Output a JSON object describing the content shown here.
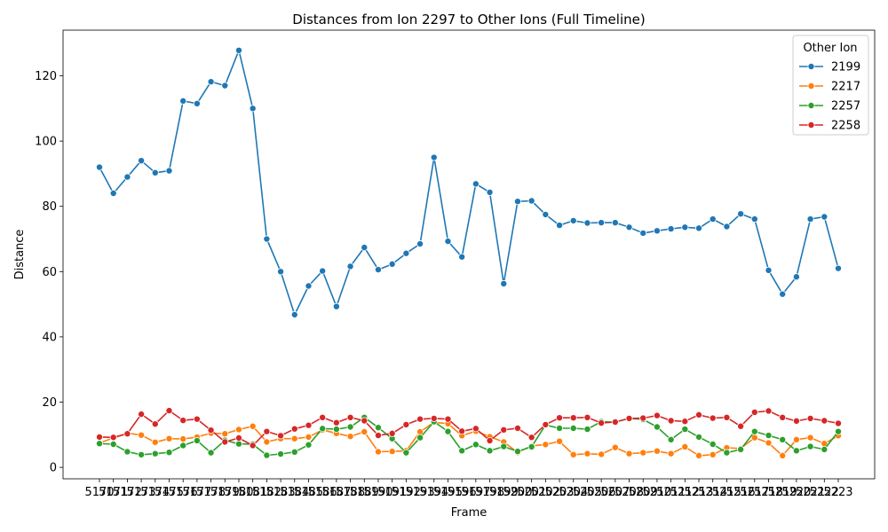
{
  "chart_data": {
    "type": "line",
    "title": "Distances from Ion 2297 to Other Ions (Full Timeline)",
    "xlabel": "Frame",
    "ylabel": "Distance",
    "ylim": [
      -3.5,
      134
    ],
    "y_ticks": [
      0,
      20,
      40,
      60,
      80,
      100,
      120
    ],
    "legend": {
      "title": "Other Ion",
      "placement": "top-right"
    },
    "x": [
      "5170",
      "5171",
      "5172",
      "5173",
      "5174",
      "5175",
      "5176",
      "5177",
      "5178",
      "5179",
      "5180",
      "5181",
      "5182",
      "5183",
      "5184",
      "5185",
      "5186",
      "5187",
      "5188",
      "5189",
      "5190",
      "5191",
      "5192",
      "5193",
      "5194",
      "5195",
      "5196",
      "5197",
      "5198",
      "5199",
      "5200",
      "5201",
      "5202",
      "5203",
      "5204",
      "5205",
      "5206",
      "5207",
      "5208",
      "5209",
      "5210",
      "5211",
      "5212",
      "5213",
      "5214",
      "5215",
      "5216",
      "5217",
      "5218",
      "5219",
      "5220",
      "5221",
      "5222",
      "5223"
    ],
    "series": [
      {
        "name": "2199",
        "color": "#1f77b4",
        "values": [
          92,
          84,
          89,
          94,
          90.3,
          90.9,
          112.3,
          111.5,
          118.2,
          117,
          127.8,
          110,
          70,
          60,
          46.8,
          55.6,
          60.2,
          49.3,
          61.6,
          67.4,
          60.6,
          62.3,
          65.6,
          68.5,
          95,
          69.3,
          64.5,
          86.9,
          84.3,
          56.3,
          81.5,
          81.7,
          77.5,
          74.2,
          75.6,
          74.9,
          75,
          75,
          73.6,
          71.8,
          72.5,
          73.1,
          73.6,
          73.3,
          76.1,
          73.8,
          77.7,
          76.1,
          60.4,
          53.1,
          58.4,
          76.1,
          76.8,
          61
        ]
      },
      {
        "name": "2217",
        "color": "#ff7f0e",
        "values": [
          7.5,
          9,
          10.5,
          9.9,
          7.7,
          8.8,
          8.7,
          9.3,
          10.5,
          10.3,
          11.6,
          12.6,
          7.8,
          8.8,
          8.8,
          9.3,
          11.5,
          10.4,
          9.5,
          10.9,
          4.8,
          4.9,
          5.1,
          10.9,
          13.8,
          13.4,
          9.7,
          11.1,
          9.4,
          7.8,
          4.6,
          6.6,
          7,
          8,
          3.9,
          4.2,
          4,
          6.1,
          4.2,
          4.5,
          5,
          4.2,
          6.3,
          3.6,
          3.9,
          6,
          5.8,
          9.1,
          7.5,
          3.6,
          8.5,
          9.1,
          7.3,
          9.7
        ]
      },
      {
        "name": "2257",
        "color": "#2ca02c",
        "values": [
          7.3,
          7.1,
          4.8,
          3.9,
          4.2,
          4.6,
          6.7,
          8.2,
          4.5,
          8.3,
          7.2,
          7.1,
          3.7,
          4.1,
          4.7,
          6.9,
          11.9,
          11.7,
          12.4,
          15.3,
          12.2,
          8.8,
          4.5,
          9.1,
          14,
          11,
          5.1,
          7,
          5.1,
          6.4,
          4.9,
          6.3,
          13,
          12,
          12,
          11.7,
          14,
          13.9,
          15,
          14.7,
          12.4,
          8.5,
          11.7,
          9.3,
          7.1,
          4.5,
          5.5,
          11,
          9.8,
          8.5,
          5.1,
          6.4,
          5.5,
          11
        ]
      },
      {
        "name": "2258",
        "color": "#d62728",
        "values": [
          9.3,
          9.2,
          10.3,
          16.3,
          13.3,
          17.4,
          14.4,
          14.8,
          11.4,
          7.8,
          9,
          6.7,
          11,
          9.7,
          11.8,
          12.9,
          15.3,
          13.7,
          15.3,
          14.3,
          9.8,
          10.4,
          13.1,
          14.8,
          15,
          14.8,
          11.1,
          11.9,
          8.2,
          11.5,
          12,
          9.2,
          13.1,
          15.2,
          15.2,
          15.3,
          13.6,
          13.9,
          15,
          15.1,
          15.9,
          14.3,
          14.1,
          16.1,
          15.1,
          15.3,
          12.6,
          16.9,
          17.3,
          15.3,
          14.2,
          15,
          14.3,
          13.5
        ]
      }
    ]
  }
}
